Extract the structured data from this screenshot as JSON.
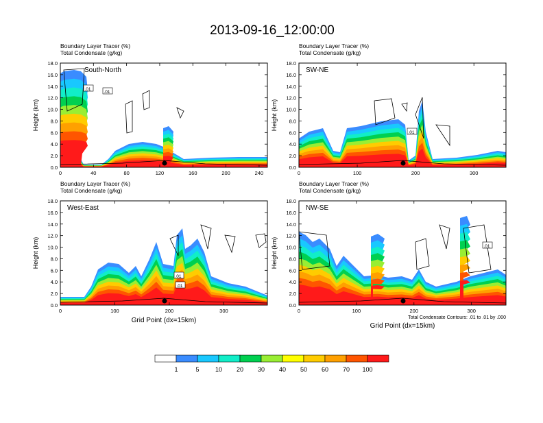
{
  "title": "2013-09-16_12:00:00",
  "colors": {
    "palette": [
      "#ffffff",
      "#3a8cff",
      "#19c8ff",
      "#11eec8",
      "#00d050",
      "#99ee33",
      "#ffff00",
      "#ffcc00",
      "#ffa000",
      "#ff5500",
      "#ff1a1a"
    ],
    "contour": "#000000",
    "grid_box": "#000000"
  },
  "colorbar": {
    "labels": [
      "1",
      "5",
      "10",
      "20",
      "30",
      "40",
      "50",
      "60",
      "70",
      "100"
    ]
  },
  "panels": [
    {
      "id": "south-north",
      "header1": "Boundary Layer Tracer   (%)",
      "header2": "Total Condensate   (g/kg)",
      "inner_label": "South-North",
      "ylabel": "Height (km)",
      "xlabel": "",
      "yticks": [
        "0.0",
        "2.0",
        "4.0",
        "6.0",
        "8.0",
        "10.0",
        "12.0",
        "14.0",
        "16.0",
        "18.0"
      ],
      "xticks": [
        "0",
        "40",
        "80",
        "120",
        "160",
        "200",
        "240"
      ],
      "xmax": 250,
      "contour_labels": [
        ".01",
        ".01"
      ]
    },
    {
      "id": "sw-ne",
      "header1": "Boundary Layer Tracer   (%)",
      "header2": "Total Condensate   (g/kg)",
      "inner_label": "SW-NE",
      "ylabel": "Height (km)",
      "xlabel": "",
      "yticks": [
        "0.0",
        "2.0",
        "4.0",
        "6.0",
        "8.0",
        "10.0",
        "12.0",
        "14.0",
        "16.0",
        "18.0"
      ],
      "xticks": [
        "0",
        "100",
        "200",
        "300"
      ],
      "xmax": 355,
      "contour_labels": [
        ".01"
      ]
    },
    {
      "id": "west-east",
      "header1": "Boundary Layer Tracer   (%)",
      "header2": "Total Condensate   (g/kg)",
      "inner_label": "West-East",
      "ylabel": "Height (km)",
      "xlabel": "Grid Point (dx=15km)",
      "yticks": [
        "0.0",
        "2.0",
        "4.0",
        "6.0",
        "8.0",
        "10.0",
        "12.0",
        "14.0",
        "16.0",
        "18.0"
      ],
      "xticks": [
        "0",
        "100",
        "200",
        "300"
      ],
      "xmax": 380,
      "contour_labels": [
        ".01",
        ".01"
      ]
    },
    {
      "id": "nw-se",
      "header1": "Boundary Layer Tracer   (%)",
      "header2": "Total Condensate   (g/kg)",
      "inner_label": "NW-SE",
      "ylabel": "Height (km)",
      "xlabel": "Grid Point (dx=15km)",
      "yticks": [
        "0.0",
        "2.0",
        "4.0",
        "6.0",
        "8.0",
        "10.0",
        "12.0",
        "14.0",
        "16.0",
        "18.0"
      ],
      "xticks": [
        "0",
        "100",
        "200",
        "300"
      ],
      "xmax": 360,
      "contour_labels": [
        ".01"
      ],
      "footnote": "Total Condensate Contours: .01 to .01 by .000"
    }
  ],
  "chart_data": [
    {
      "type": "heatmap",
      "title": "South-North",
      "xlabel": "",
      "ylabel": "Height (km)",
      "xlim": [
        0,
        250
      ],
      "ylim": [
        0,
        18
      ],
      "legend": "bottom",
      "legend_levels": [
        1,
        5,
        10,
        20,
        30,
        40,
        50,
        60,
        70,
        100
      ],
      "features": [
        {
          "x": [
            0,
            20
          ],
          "top_km": 16.5,
          "level": "100"
        },
        {
          "x": [
            60,
            130
          ],
          "top_km": 4.5,
          "level": "70"
        },
        {
          "x": [
            130,
            250
          ],
          "top_km": 2.0,
          "level": "70"
        }
      ]
    },
    {
      "type": "heatmap",
      "title": "SW-NE",
      "xlabel": "",
      "ylabel": "Height (km)",
      "xlim": [
        0,
        355
      ],
      "ylim": [
        0,
        18
      ],
      "legend": "bottom",
      "legend_levels": [
        1,
        5,
        10,
        20,
        30,
        40,
        50,
        60,
        70,
        100
      ],
      "features": [
        {
          "x": [
            0,
            170
          ],
          "top_km": 6.0,
          "level": "70"
        },
        {
          "x": [
            180,
            195
          ],
          "top_km": 7.0,
          "level": "70"
        },
        {
          "x": [
            200,
            355
          ],
          "top_km": 2.5,
          "level": "70"
        }
      ]
    },
    {
      "type": "heatmap",
      "title": "West-East",
      "xlabel": "Grid Point (dx=15km)",
      "ylabel": "Height (km)",
      "xlim": [
        0,
        380
      ],
      "ylim": [
        0,
        18
      ],
      "legend": "bottom",
      "legend_levels": [
        1,
        5,
        10,
        20,
        30,
        40,
        50,
        60,
        70,
        100
      ],
      "features": [
        {
          "x": [
            50,
            330
          ],
          "top_km": 6.5,
          "level": "70"
        },
        {
          "x": [
            170,
            200
          ],
          "top_km": 12.5,
          "level": "40"
        },
        {
          "x": [
            205,
            250
          ],
          "top_km": 12.0,
          "level": "40"
        }
      ]
    },
    {
      "type": "heatmap",
      "title": "NW-SE",
      "xlabel": "Grid Point (dx=15km)",
      "ylabel": "Height (km)",
      "xlim": [
        0,
        360
      ],
      "ylim": [
        0,
        18
      ],
      "legend": "bottom",
      "legend_levels": [
        1,
        5,
        10,
        20,
        30,
        40,
        50,
        60,
        70,
        100
      ],
      "features": [
        {
          "x": [
            0,
            200
          ],
          "top_km": 12.5,
          "level": "70"
        },
        {
          "x": [
            200,
            360
          ],
          "top_km": 3.5,
          "level": "70"
        },
        {
          "x": [
            280,
            360
          ],
          "top_km": 15.0,
          "level": "10"
        }
      ]
    }
  ]
}
